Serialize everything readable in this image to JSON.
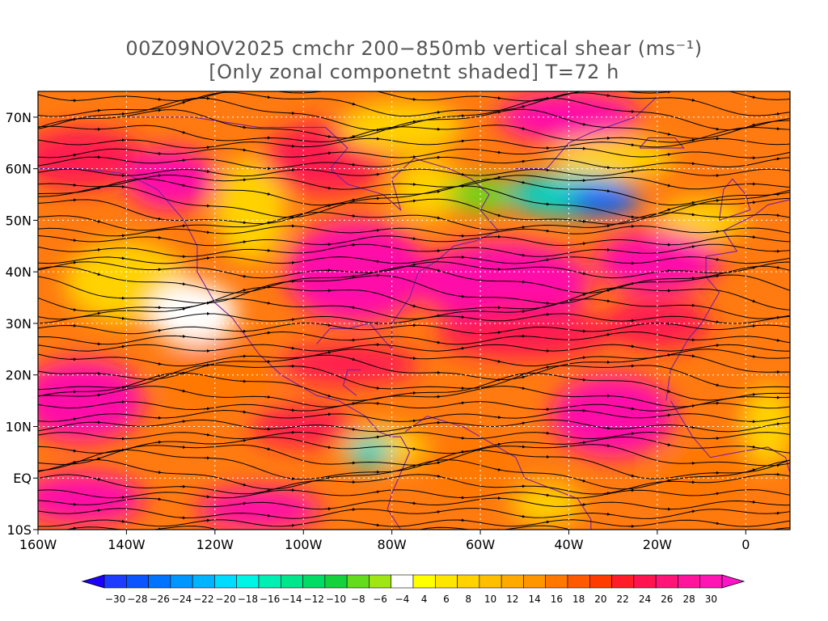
{
  "title": {
    "line1": "00Z09NOV2025 cmchr 200−850mb vertical shear (ms⁻¹)",
    "line2": "[Only zonal componetnt shaded] T=72 h"
  },
  "map": {
    "lon_range": [
      -160,
      10
    ],
    "lat_range": [
      -10,
      75
    ],
    "lat_ticks": [
      {
        "value": 70,
        "label": "70N"
      },
      {
        "value": 60,
        "label": "60N"
      },
      {
        "value": 50,
        "label": "50N"
      },
      {
        "value": 40,
        "label": "40N"
      },
      {
        "value": 30,
        "label": "30N"
      },
      {
        "value": 20,
        "label": "20N"
      },
      {
        "value": 10,
        "label": "10N"
      },
      {
        "value": 0,
        "label": "EQ"
      },
      {
        "value": -10,
        "label": "10S"
      }
    ],
    "lon_ticks": [
      {
        "value": -160,
        "label": "160W"
      },
      {
        "value": -140,
        "label": "140W"
      },
      {
        "value": -120,
        "label": "120W"
      },
      {
        "value": -100,
        "label": "100W"
      },
      {
        "value": -80,
        "label": "80W"
      },
      {
        "value": -60,
        "label": "60W"
      },
      {
        "value": -40,
        "label": "40W"
      },
      {
        "value": -20,
        "label": "20W"
      },
      {
        "value": 0,
        "label": "0"
      }
    ]
  },
  "colorbar": {
    "labels": [
      "−30",
      "−28",
      "−26",
      "−24",
      "−22",
      "−20",
      "−18",
      "−16",
      "−14",
      "−12",
      "−10",
      "−8",
      "−6",
      "−4",
      "4",
      "6",
      "8",
      "10",
      "12",
      "14",
      "16",
      "18",
      "20",
      "22",
      "24",
      "26",
      "28",
      "30"
    ],
    "colors": [
      "#1e3cff",
      "#0a55ff",
      "#0073ff",
      "#0096ff",
      "#00b4ff",
      "#00dcff",
      "#00f5e6",
      "#00f0b4",
      "#00e68c",
      "#00dc64",
      "#14d23c",
      "#64dc1e",
      "#a0e614",
      "#ffffff",
      "#ffff00",
      "#ffe600",
      "#ffd200",
      "#ffbe00",
      "#ffaa00",
      "#ff9600",
      "#ff7800",
      "#ff5a00",
      "#ff3c00",
      "#ff1e28",
      "#ff1450",
      "#ff1478",
      "#ff149b",
      "#ff14b4"
    ],
    "under_color": "#1e00ff",
    "over_color": "#ff14c8"
  },
  "shading_colors": {
    "strong_positive": "#ff10a8",
    "positive": "#ff1e50",
    "moderate": "#ff7800",
    "weak": "#ffd200",
    "near_zero": "#ffffff",
    "weak_negative": "#64dc1e",
    "moderate_negative": "#00d2c8",
    "strong_negative": "#0060ff"
  },
  "streamline_color": "#000000",
  "coast_color": "#7a1fa0"
}
